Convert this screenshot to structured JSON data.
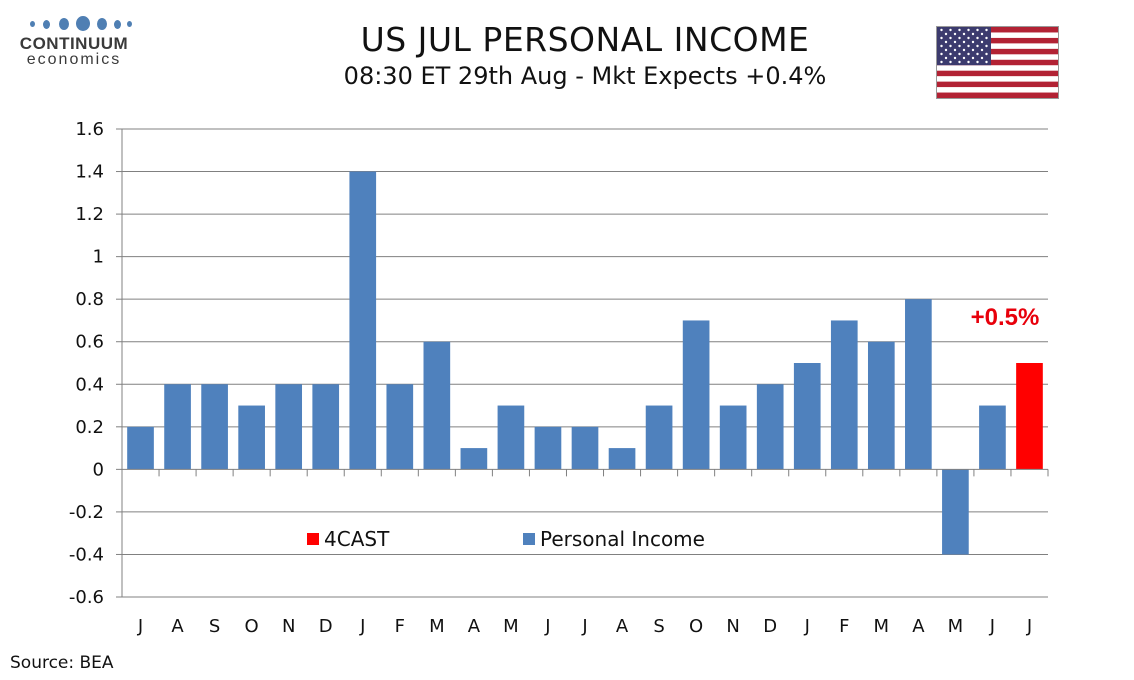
{
  "brand": {
    "name": "CONTINUUM",
    "sub": "economics"
  },
  "header": {
    "title": "US JUL PERSONAL INCOME",
    "subtitle": "08:30 ET 29th Aug - Mkt Expects +0.4%"
  },
  "flag": {
    "name": "us-flag-icon",
    "colors": {
      "red": "#b22234",
      "white": "#ffffff",
      "blue": "#3c3b6e"
    }
  },
  "footer": {
    "source": "Source: BEA"
  },
  "colors": {
    "actual": "#4f81bd",
    "forecast": "#ff0000",
    "annotation": "#e8000b",
    "grid": "#808080"
  },
  "chart_data": {
    "type": "bar",
    "categories": [
      "J",
      "A",
      "S",
      "O",
      "N",
      "D",
      "J",
      "F",
      "M",
      "A",
      "M",
      "J",
      "J",
      "A",
      "S",
      "O",
      "N",
      "D",
      "J",
      "F",
      "M",
      "A",
      "M",
      "J",
      "J"
    ],
    "series": [
      {
        "name": "Personal Income",
        "values": [
          0.2,
          0.4,
          0.4,
          0.3,
          0.4,
          0.4,
          1.4,
          0.4,
          0.6,
          0.1,
          0.3,
          0.2,
          0.2,
          0.1,
          0.3,
          0.7,
          0.3,
          0.4,
          0.5,
          0.7,
          0.6,
          0.8,
          -0.4,
          0.3,
          null
        ]
      },
      {
        "name": "4CAST",
        "values": [
          null,
          null,
          null,
          null,
          null,
          null,
          null,
          null,
          null,
          null,
          null,
          null,
          null,
          null,
          null,
          null,
          null,
          null,
          null,
          null,
          null,
          null,
          null,
          null,
          0.5
        ]
      }
    ],
    "yticks": [
      "1.6",
      "1.4",
      "1.2",
      "1",
      "0.8",
      "0.6",
      "0.4",
      "0.2",
      "0",
      "-0.2",
      "-0.4",
      "-0.6"
    ],
    "ylim": [
      -0.6,
      1.6
    ],
    "grid": true,
    "legend": [
      "4CAST",
      "Personal Income"
    ],
    "annotation": "+0.5%"
  }
}
